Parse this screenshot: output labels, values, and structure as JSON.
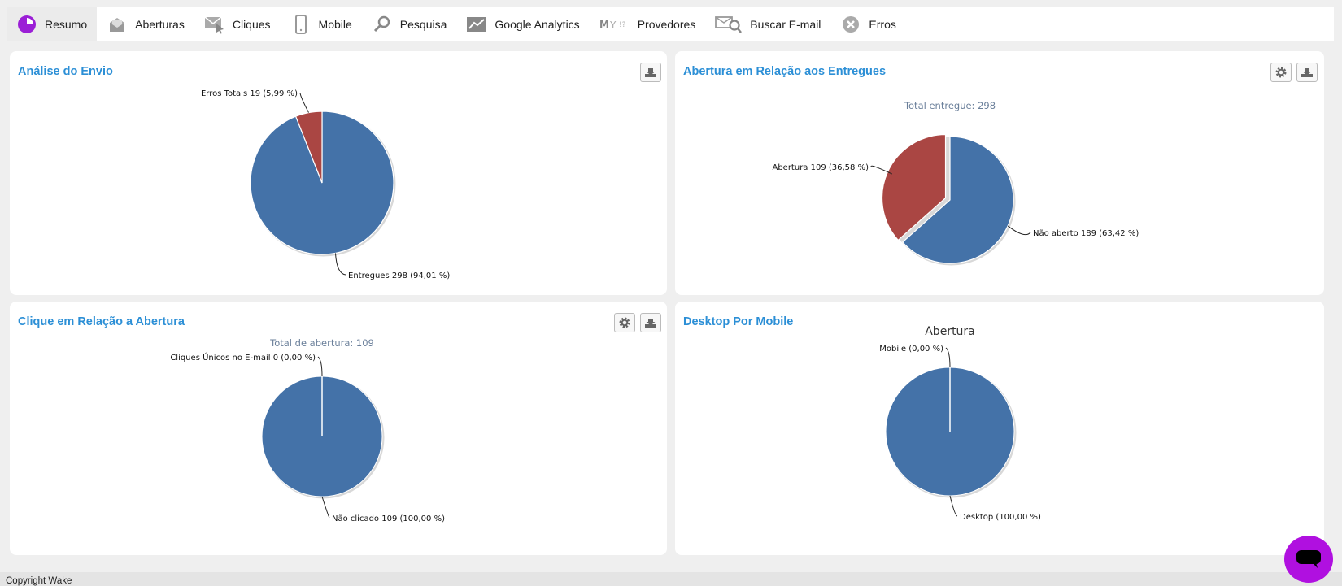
{
  "tabs": [
    {
      "label": "Resumo",
      "icon": "pie-chart-icon",
      "active": true
    },
    {
      "label": "Aberturas",
      "icon": "open-envelope-icon",
      "active": false
    },
    {
      "label": "Cliques",
      "icon": "envelope-cursor-icon",
      "active": false
    },
    {
      "label": "Mobile",
      "icon": "mobile-phone-icon",
      "active": false
    },
    {
      "label": "Pesquisa",
      "icon": "search-icon",
      "active": false
    },
    {
      "label": "Google Analytics",
      "icon": "trend-chart-icon",
      "active": false
    },
    {
      "label": "Provedores",
      "icon": "providers-logo-icon",
      "active": false
    },
    {
      "label": "Buscar E-mail",
      "icon": "envelope-search-icon",
      "active": false
    },
    {
      "label": "Erros",
      "icon": "error-x-icon",
      "active": false
    }
  ],
  "colors": {
    "blue": "#4472a8",
    "red": "#aa4643",
    "title": "#2c8fd6",
    "accent": "#b010e0"
  },
  "panels": {
    "envio": {
      "title": "Análise do Envio"
    },
    "entregues": {
      "title": "Abertura em Relação aos Entregues"
    },
    "clique": {
      "title": "Clique em Relação a Abertura"
    },
    "mobile": {
      "title": "Desktop Por Mobile"
    }
  },
  "chart_data": [
    {
      "type": "pie",
      "title": "",
      "slices": [
        {
          "label": "Entregues 298 (94,01 %)",
          "value": 298,
          "color": "#4472a8"
        },
        {
          "label": "Erros Totais 19 (5,99 %)",
          "value": 19,
          "color": "#aa4643"
        }
      ]
    },
    {
      "type": "pie",
      "title": "Total entregue: 298",
      "slices": [
        {
          "label": "Não aberto 189 (63,42 %)",
          "value": 189,
          "color": "#4472a8"
        },
        {
          "label": "Abertura 109 (36,58 %)",
          "value": 109,
          "color": "#aa4643",
          "exploded": true
        }
      ]
    },
    {
      "type": "pie",
      "title": "Total de abertura: 109",
      "slices": [
        {
          "label": "Não clicado 109 (100,00 %)",
          "value": 109,
          "color": "#4472a8"
        },
        {
          "label": "Cliques Únicos no E-mail 0 (0,00 %)",
          "value": 0,
          "color": "#aa4643"
        }
      ]
    },
    {
      "type": "pie",
      "title": "Abertura",
      "slices": [
        {
          "label": "Desktop (100,00 %)",
          "value": 100,
          "color": "#4472a8"
        },
        {
          "label": "Mobile (0,00 %)",
          "value": 0,
          "color": "#aa4643"
        }
      ]
    }
  ],
  "footer": {
    "text": "Copyright Wake"
  }
}
